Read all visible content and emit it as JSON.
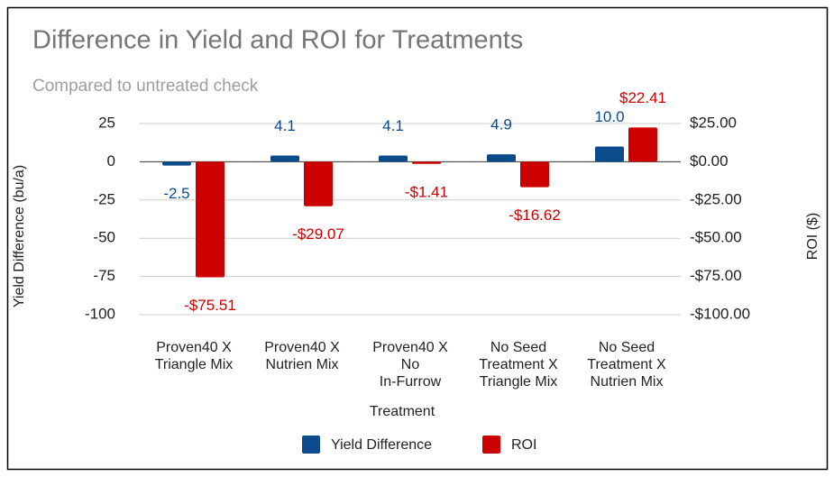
{
  "chart_data": {
    "type": "bar",
    "title": "Difference in Yield and ROI for Treatments",
    "subtitle": "Compared to untreated check",
    "x_label": "Treatment",
    "y_label": "Yield Difference (bu/a)",
    "y2_label": "ROI ($)",
    "categories": [
      "Proven40 X\nTriangle Mix",
      "Proven40 X\nNutrien Mix",
      "Proven40 X\nNo\nIn-Furrow",
      "No Seed\nTreatment X\nTriangle Mix",
      "No Seed\nTreatment X\nNutrien Mix"
    ],
    "series": [
      {
        "name": "Yield Difference",
        "color": "#0b4a8b",
        "values": [
          -2.5,
          4.1,
          4.1,
          4.9,
          10.0
        ],
        "value_labels": [
          "-2.5",
          "4.1",
          "4.1",
          "4.9",
          "10.0"
        ]
      },
      {
        "name": "ROI",
        "color": "#cc0000",
        "axis": "y2",
        "values": [
          -75.51,
          -29.07,
          -1.41,
          -16.62,
          22.41
        ],
        "value_labels": [
          "-$75.51",
          "-$29.07",
          "-$1.41",
          "-$16.62",
          "$22.41"
        ]
      }
    ],
    "ylim": [
      -100,
      25
    ],
    "yticks": [
      25,
      0,
      -25,
      -50,
      -75,
      -100
    ],
    "y2lim": [
      -100,
      25
    ],
    "y2ticks": [
      {
        "value": 25,
        "label": "$25.00"
      },
      {
        "value": 0,
        "label": "$0.00"
      },
      {
        "value": -25,
        "label": "-$25.00"
      },
      {
        "value": -50,
        "label": "-$50.00"
      },
      {
        "value": -75,
        "label": "-$75.00"
      },
      {
        "value": -100,
        "label": "-$100.00"
      }
    ],
    "grid": true,
    "legend": "bottom"
  }
}
